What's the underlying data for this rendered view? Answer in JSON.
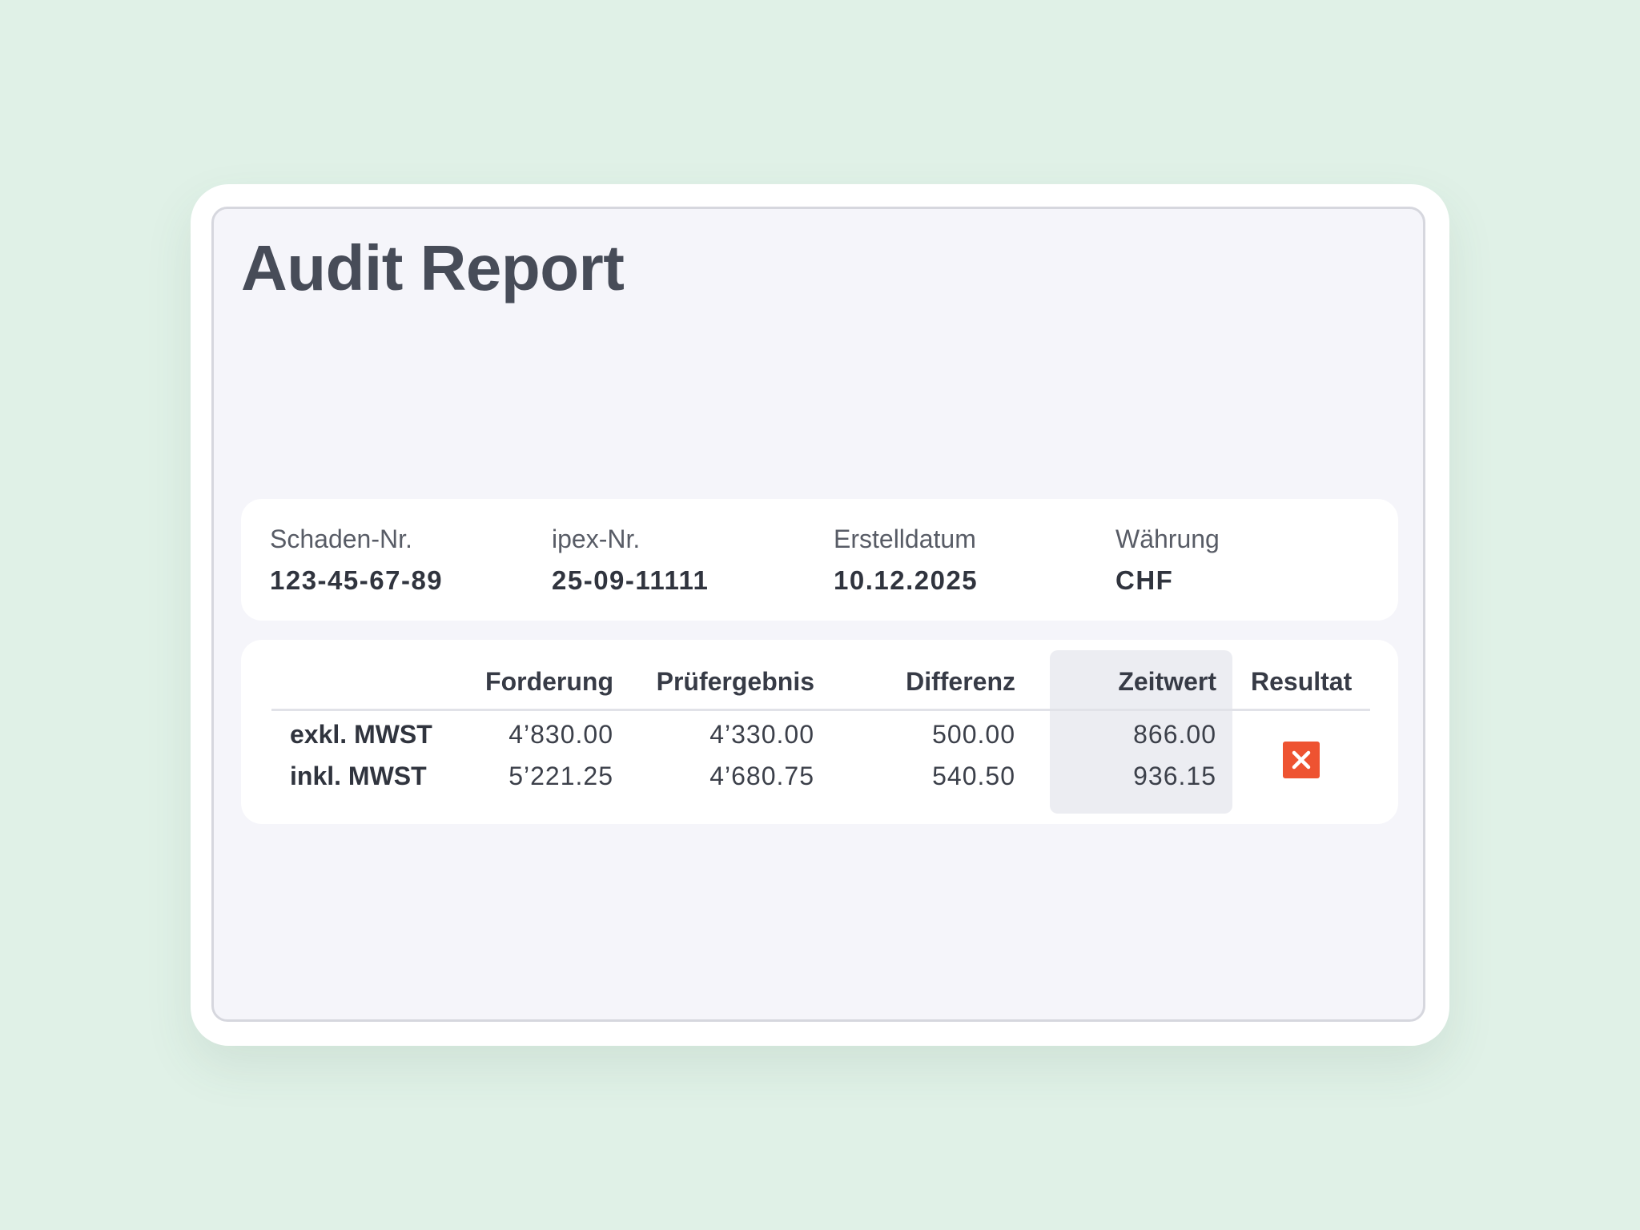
{
  "report": {
    "title": "Audit Report"
  },
  "info": [
    {
      "label": "Schaden-Nr.",
      "value": "123-45-67-89"
    },
    {
      "label": "ipex-Nr.",
      "value": "25-09-11111"
    },
    {
      "label": "Erstelldatum",
      "value": "10.12.2025"
    },
    {
      "label": "Währung",
      "value": "CHF"
    }
  ],
  "table": {
    "headers": {
      "forderung": "Forderung",
      "pruefergebnis": "Prüfergebnis",
      "differenz": "Differenz",
      "zeitwert": "Zeitwert",
      "resultat": "Resultat"
    },
    "rows": [
      {
        "label": "exkl. MWST",
        "forderung": "4’830.00",
        "pruefergebnis": "4’330.00",
        "differenz": "500.00",
        "zeitwert": "866.00"
      },
      {
        "label": "inkl. MWST",
        "forderung": "5’221.25",
        "pruefergebnis": "4’680.75",
        "differenz": "540.50",
        "zeitwert": "936.15"
      }
    ],
    "result": {
      "icon": "close-icon",
      "status": "rejected",
      "color": "#ee5331"
    }
  }
}
